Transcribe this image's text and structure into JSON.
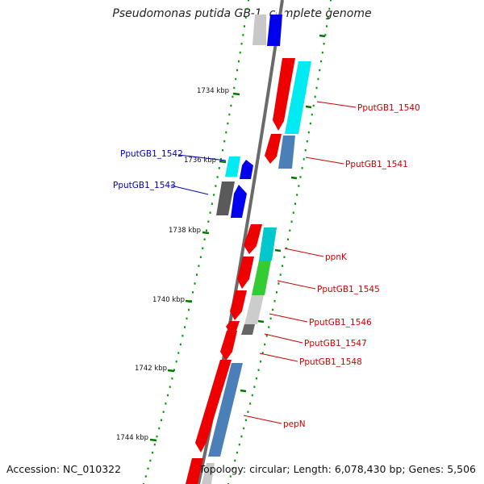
{
  "title": "Pseudomonas putida GB-1, complete genome",
  "accession_text": "Accession: NC_010322",
  "stats_text": "Topology: circular; Length: 6,078,430 bp; Genes: 5,506",
  "colors": {
    "forward_label": "#cc0000",
    "reverse_label": "#0000bb",
    "tick": "#007700",
    "backbone": "#555555"
  },
  "ticks": [
    {
      "label": "1734 kbp"
    },
    {
      "label": "1736 kbp"
    },
    {
      "label": "1738 kbp"
    },
    {
      "label": "1740 kbp"
    },
    {
      "label": "1742 kbp"
    },
    {
      "label": "1744 kbp"
    }
  ],
  "gene_labels": [
    {
      "name": "PputGB1_1540",
      "strand": "forward"
    },
    {
      "name": "PputGB1_1541",
      "strand": "forward"
    },
    {
      "name": "PputGB1_1542",
      "strand": "reverse"
    },
    {
      "name": "PputGB1_1543",
      "strand": "reverse"
    },
    {
      "name": "ppnK",
      "strand": "forward"
    },
    {
      "name": "PputGB1_1545",
      "strand": "forward"
    },
    {
      "name": "PputGB1_1546",
      "strand": "forward"
    },
    {
      "name": "PputGB1_1547",
      "strand": "forward"
    },
    {
      "name": "PputGB1_1548",
      "strand": "forward"
    },
    {
      "name": "pepN",
      "strand": "forward"
    }
  ]
}
